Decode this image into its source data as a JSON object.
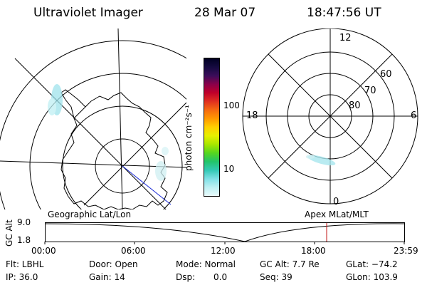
{
  "header": {
    "instrument": "Ultraviolet Imager",
    "date": "28 Mar 07",
    "time": "18:47:56 UT"
  },
  "colorbar": {
    "unit": "photon cm⁻²s⁻¹",
    "ticks": [
      "100",
      "10"
    ],
    "colors": [
      "#000022",
      "#150a40",
      "#3a0d5a",
      "#8a004a",
      "#c0002a",
      "#e03020",
      "#f56a10",
      "#ff9900",
      "#ffd000",
      "#e6f000",
      "#a8e600",
      "#55d61f",
      "#22c46a",
      "#33c9b5",
      "#7fe0e6",
      "#bff0f3",
      "#e8fbfc"
    ]
  },
  "maps": {
    "left_label": "Geographic Lat/Lon",
    "right_label": "Apex MLat/MLT",
    "right_hours": [
      "12",
      "18",
      "6",
      "0"
    ],
    "right_lats": [
      "60",
      "70",
      "80"
    ]
  },
  "orbit_plot": {
    "ylabel": "GC Alt",
    "yticks": [
      "9.0",
      "1.8"
    ],
    "xticks": [
      "00:00",
      "06:00",
      "12:00",
      "18:00",
      "23:59"
    ]
  },
  "info": {
    "row1": [
      "Flt: LBHL",
      "Door: Open",
      "Mode: Normal",
      "GC Alt: 7.7 Re",
      "GLat: −74.2"
    ],
    "row2": [
      "IP: 36.0",
      "Gain: 14",
      "Dsp:",
      "0.0",
      "Seq: 39",
      "GLon: 103.9"
    ]
  }
}
